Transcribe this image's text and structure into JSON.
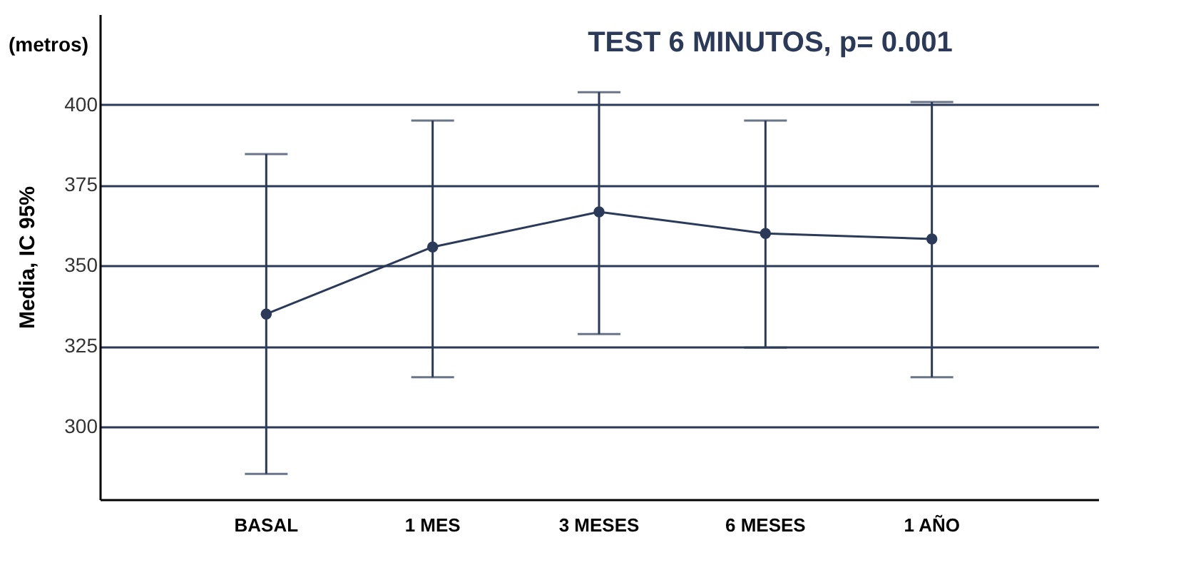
{
  "chart_data": {
    "type": "line",
    "title": "TEST 6 MINUTOS, p= 0.001",
    "ylabel": "Media, IC 95%",
    "annotations": [
      "(metros)"
    ],
    "categories": [
      "BASAL",
      "1 MES",
      "3 MESES",
      "6 MESES",
      "1 AÑO"
    ],
    "series": [
      {
        "color": "#2b3a58",
        "values": [
          335,
          355.8,
          366.7,
          360,
          358.3
        ],
        "errors": [
          [
            285.4,
            384.6
          ],
          [
            315.4,
            395
          ],
          [
            328.8,
            403.8
          ],
          [
            324.6,
            395
          ],
          [
            315.4,
            400.8
          ]
        ]
      }
    ],
    "ylim": [
      277.5,
      428
    ],
    "yticks": [
      300,
      325,
      350,
      375,
      400
    ],
    "grid": "y",
    "marker": "circle",
    "line_style": "solid"
  }
}
